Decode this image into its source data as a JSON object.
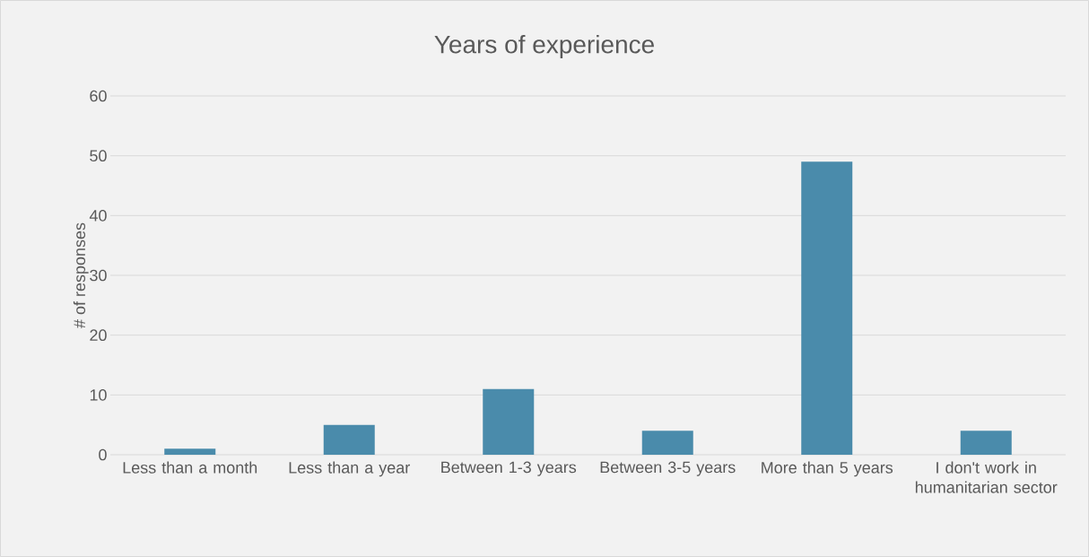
{
  "chart_data": {
    "type": "bar",
    "title": "Years of experience",
    "ylabel": "# of responses",
    "categories": [
      "Less than a month",
      "Less than a year",
      "Between 1-3 years",
      "Between 3-5 years",
      "More than 5 years",
      "I don't work in humanitarian sector"
    ],
    "values": [
      1,
      5,
      11,
      4,
      49,
      4
    ],
    "color": "#4a8bab",
    "ylim": [
      0,
      60
    ],
    "yticks": [
      0,
      10,
      20,
      30,
      40,
      50,
      60
    ],
    "grid": "y"
  }
}
